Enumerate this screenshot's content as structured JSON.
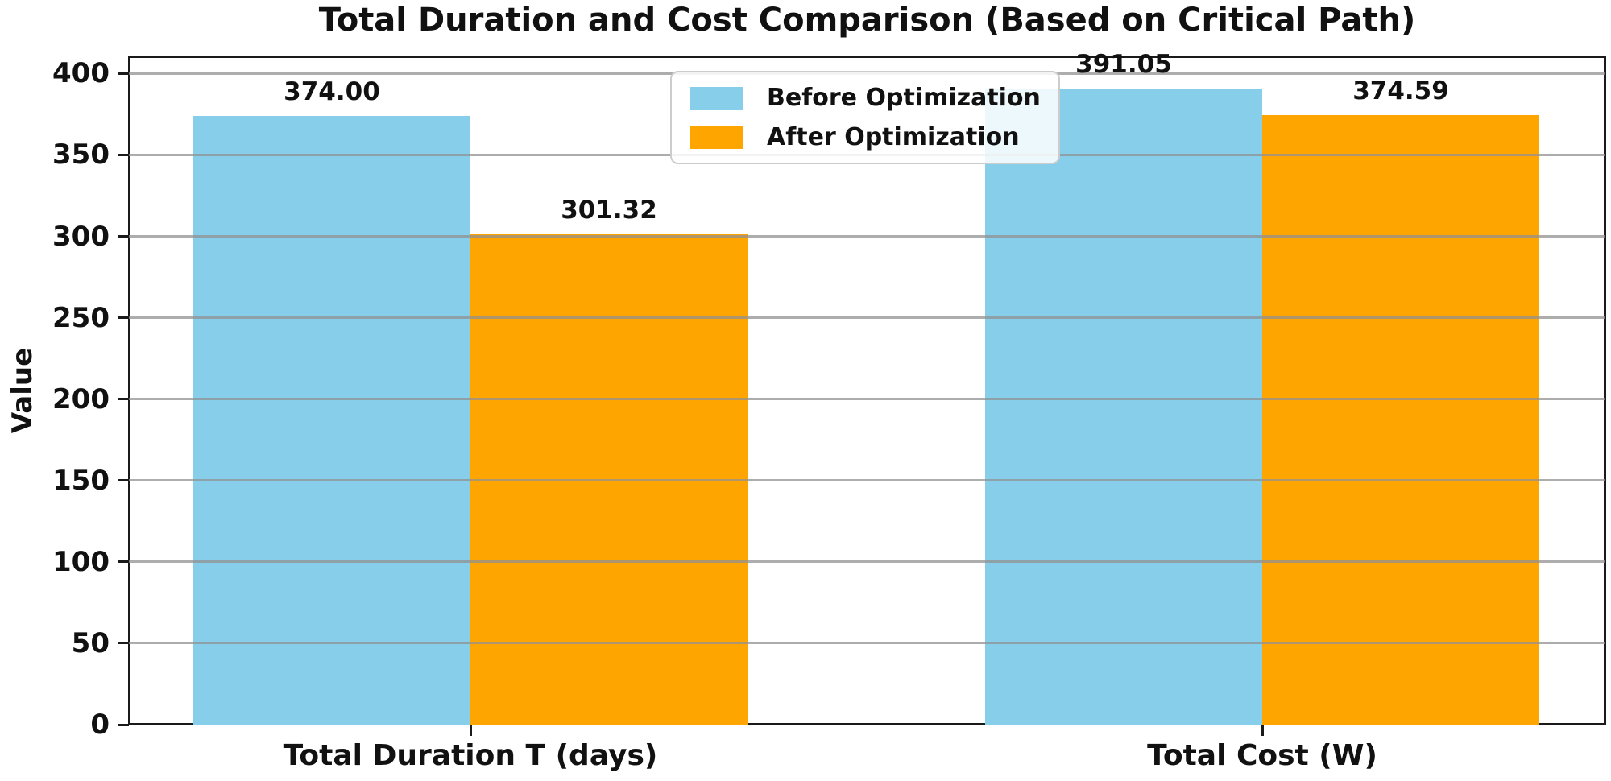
{
  "chart_data": {
    "type": "bar",
    "title": "Total Duration and Cost Comparison (Based on Critical Path)",
    "xlabel": "",
    "ylabel": "Value",
    "categories": [
      "Total Duration T (days)",
      "Total Cost (W)"
    ],
    "series": [
      {
        "name": "Before Optimization",
        "color": "#87CEEB",
        "values": [
          374.0,
          391.05
        ]
      },
      {
        "name": "After Optimization",
        "color": "#FFA500",
        "values": [
          301.32,
          374.59
        ]
      }
    ],
    "bar_labels": [
      [
        "374.00",
        "391.05"
      ],
      [
        "301.32",
        "374.59"
      ]
    ],
    "yticks": [
      0,
      50,
      100,
      150,
      200,
      250,
      300,
      350,
      400
    ],
    "ylim": [
      0,
      410.6
    ],
    "grid": true,
    "gridline_color": "#919191",
    "legend_position": "upper center",
    "spine_color": "#1a1a1a",
    "background_color": "#ffffff"
  }
}
